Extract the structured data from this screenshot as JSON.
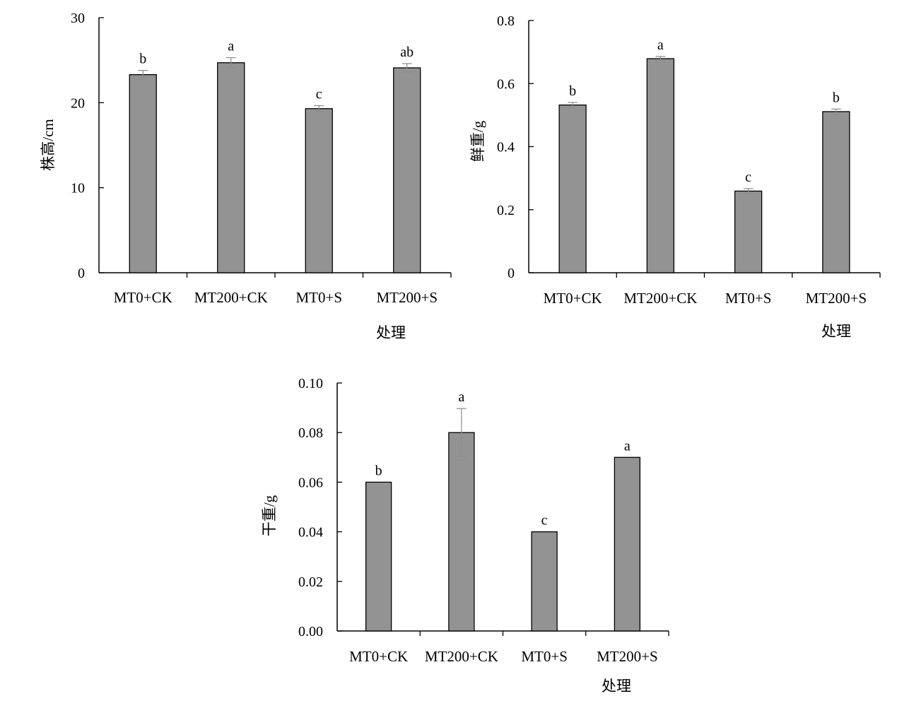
{
  "chart_data": [
    {
      "type": "bar",
      "categories": [
        "MT0+CK",
        "MT200+CK",
        "MT0+S",
        "MT200+S"
      ],
      "values": [
        23.3,
        24.7,
        19.3,
        24.1
      ],
      "errors": [
        0.5,
        0.6,
        0.35,
        0.5
      ],
      "significance": [
        "b",
        "a",
        "c",
        "ab"
      ],
      "xlabel": "处理",
      "ylabel": "株高/cm",
      "ylim": [
        0,
        30
      ],
      "yticks": [
        "0",
        "10",
        "20",
        "30"
      ],
      "bar_color": "#939393"
    },
    {
      "type": "bar",
      "categories": [
        "MT0+CK",
        "MT200+CK",
        "MT0+S",
        "MT200+S"
      ],
      "values": [
        0.532,
        0.679,
        0.259,
        0.511
      ],
      "errors": [
        0.008,
        0.007,
        0.008,
        0.008
      ],
      "significance": [
        "b",
        "a",
        "c",
        "b"
      ],
      "xlabel": "处理",
      "ylabel": "鲜重/g",
      "ylim": [
        0,
        0.8
      ],
      "yticks": [
        "0",
        "0.2",
        "0.4",
        "0.6",
        "0.8"
      ],
      "bar_color": "#939393"
    },
    {
      "type": "bar",
      "categories": [
        "MT0+CK",
        "MT200+CK",
        "MT0+S",
        "MT200+S"
      ],
      "values": [
        0.06,
        0.08,
        0.04,
        0.07
      ],
      "errors": [
        0,
        0.0097,
        0,
        0
      ],
      "significance": [
        "b",
        "a",
        "c",
        "a"
      ],
      "xlabel": "处理",
      "ylabel": "干重/g",
      "ylim": [
        0,
        0.1
      ],
      "yticks": [
        "0.00",
        "0.02",
        "0.04",
        "0.06",
        "0.08",
        "0.10"
      ],
      "bar_color": "#939393"
    }
  ]
}
